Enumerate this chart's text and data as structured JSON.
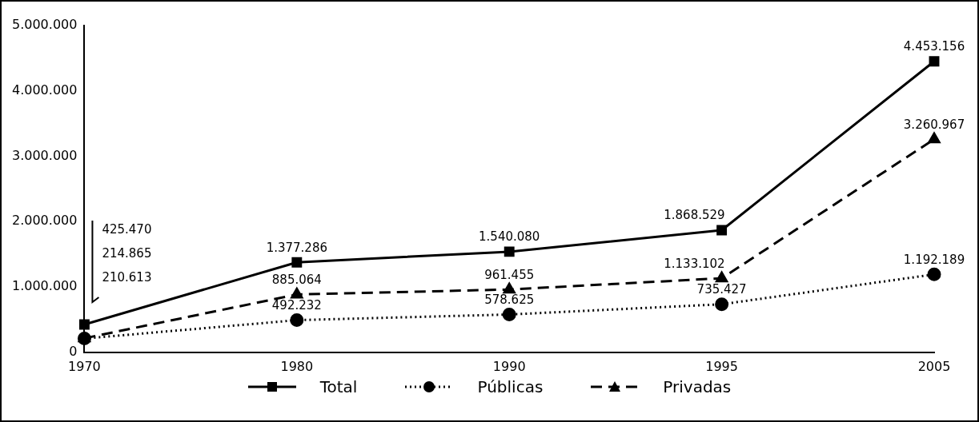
{
  "chart_data": {
    "type": "line",
    "categories": [
      "1970",
      "1980",
      "1990",
      "1995",
      "2005"
    ],
    "series": [
      {
        "name": "Total",
        "color": "#000000",
        "marker": "square",
        "line_style": "solid",
        "values": [
          425470,
          1377286,
          1540080,
          1868529,
          4453156
        ],
        "value_labels": [
          null,
          "1.377.286",
          "1.540.080",
          "1.868.529",
          "4.453.156"
        ]
      },
      {
        "name": "Públicas",
        "color": "#000000",
        "marker": "circle",
        "line_style": "dotted",
        "values": [
          210613,
          492232,
          578625,
          735427,
          1192189
        ],
        "value_labels": [
          null,
          "492.232",
          "578.625",
          "735.427",
          "1.192.189"
        ]
      },
      {
        "name": "Privadas",
        "color": "#000000",
        "marker": "triangle",
        "line_style": "dashed",
        "values": [
          214865,
          885064,
          961455,
          1133102,
          3260967
        ],
        "value_labels": [
          null,
          "885.064",
          "961.455",
          "1.133.102",
          "3.260.967"
        ]
      }
    ],
    "annotations": [
      "425.470",
      "214.865",
      "210.613"
    ],
    "ylim": [
      0,
      5000000
    ],
    "yticks": [
      {
        "value": 0,
        "label": "0"
      },
      {
        "value": 1000000,
        "label": "1.000.000"
      },
      {
        "value": 2000000,
        "label": "2.000.000"
      },
      {
        "value": 3000000,
        "label": "3.000.000"
      },
      {
        "value": 4000000,
        "label": "4.000.000"
      },
      {
        "value": 5000000,
        "label": "5.000.000"
      }
    ],
    "data_labels": true,
    "grid": false,
    "legend": "bottom"
  }
}
